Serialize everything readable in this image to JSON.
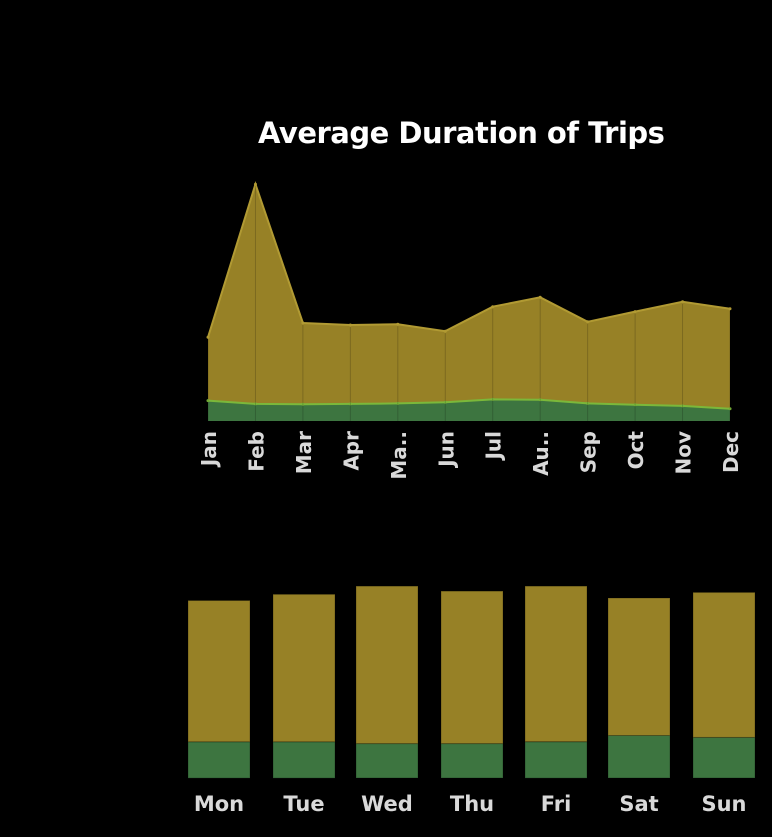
{
  "title": "Average Duration of Trips",
  "colors": {
    "background": "#000000",
    "primary_fill": "#978126",
    "primary_line": "#b19a33",
    "secondary_fill": "#3d7540",
    "secondary_line": "#7bb83a",
    "title_text": "#ffffff",
    "tick_text": "#d9d9d9"
  },
  "chart_data": [
    {
      "type": "area",
      "stacked": false,
      "categories": [
        "Jan",
        "Feb",
        "Mar",
        "Apr",
        "Ma..",
        "Jun",
        "Jul",
        "Au..",
        "Sep",
        "Oct",
        "Nov",
        "Dec"
      ],
      "series": [
        {
          "color": "#978126",
          "values": [
            20.5,
            58.0,
            24.0,
            23.5,
            23.7,
            22.0,
            28.0,
            30.3,
            24.3,
            26.8,
            29.2,
            27.5
          ]
        },
        {
          "color": "#3d7540",
          "values": [
            5.0,
            4.2,
            4.1,
            4.2,
            4.3,
            4.6,
            5.3,
            5.2,
            4.3,
            4.0,
            3.7,
            3.0
          ]
        }
      ],
      "ylim": [
        0,
        60
      ],
      "grid": false,
      "legend": "none",
      "xlabel": "",
      "ylabel": ""
    },
    {
      "type": "bar",
      "stacked": true,
      "categories": [
        "Mon",
        "Tue",
        "Wed",
        "Thu",
        "Fri",
        "Sat",
        "Sun"
      ],
      "series": [
        {
          "color": "#3d7540",
          "values": [
            5.8,
            5.8,
            5.5,
            5.5,
            5.8,
            6.8,
            6.5
          ]
        },
        {
          "color": "#978126",
          "values": [
            22.6,
            23.6,
            25.2,
            24.4,
            24.9,
            22.0,
            23.2
          ]
        }
      ],
      "ylim": [
        0,
        32
      ],
      "grid": false,
      "legend": "none",
      "xlabel": "",
      "ylabel": ""
    }
  ]
}
